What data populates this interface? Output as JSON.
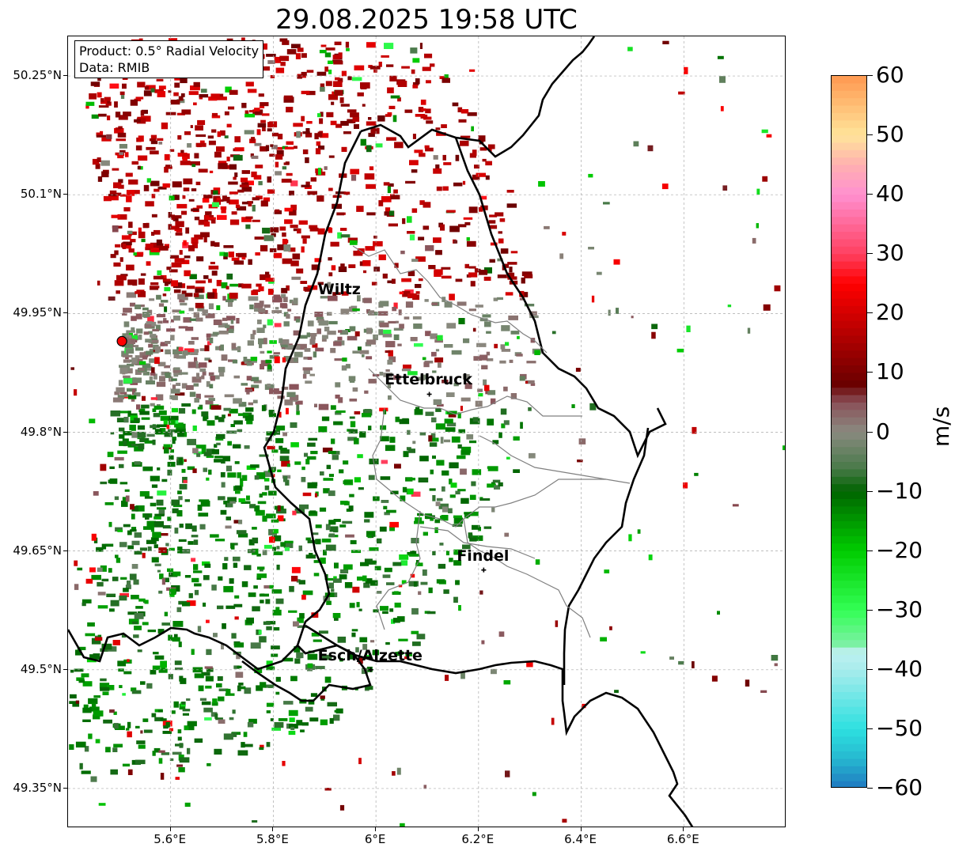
{
  "title": "29.08.2025 19:58 UTC",
  "info_box": {
    "product": "Product: 0.5° Radial Velocity",
    "source": "Data: RMIB"
  },
  "map": {
    "lon_range": [
      5.4,
      6.8
    ],
    "lat_range": [
      49.3,
      50.3
    ],
    "lat_ticks": [
      {
        "value": 50.25,
        "label": "50.25°N"
      },
      {
        "value": 50.1,
        "label": "50.1°N"
      },
      {
        "value": 49.95,
        "label": "49.95°N"
      },
      {
        "value": 49.8,
        "label": "49.8°N"
      },
      {
        "value": 49.65,
        "label": "49.65°N"
      },
      {
        "value": 49.5,
        "label": "49.5°N"
      },
      {
        "value": 49.35,
        "label": "49.35°N"
      }
    ],
    "lon_ticks": [
      {
        "value": 5.6,
        "label": "5.6°E"
      },
      {
        "value": 5.8,
        "label": "5.8°E"
      },
      {
        "value": 6.0,
        "label": "6°E"
      },
      {
        "value": 6.2,
        "label": "6.2°E"
      },
      {
        "value": 6.4,
        "label": "6.4°E"
      },
      {
        "value": 6.6,
        "label": "6.6°E"
      }
    ],
    "grid": true,
    "radar_site": {
      "lon": 5.505,
      "lat": 49.915,
      "color": "#ff0000"
    },
    "cities": [
      {
        "name": "Wiltz",
        "lon": 5.93,
        "lat": 49.97,
        "marker": false
      },
      {
        "name": "Ettelbruck",
        "lon": 6.104,
        "lat": 49.848,
        "marker": true
      },
      {
        "name": "Findel",
        "lon": 6.21,
        "lat": 49.626,
        "marker": true
      },
      {
        "name": "Esch/Alzette",
        "lon": 5.99,
        "lat": 49.5,
        "marker": true
      }
    ]
  },
  "colorbar": {
    "label": "m/s",
    "range": [
      -60,
      60
    ],
    "ticks": [
      {
        "value": 60,
        "label": "60"
      },
      {
        "value": 50,
        "label": "50"
      },
      {
        "value": 40,
        "label": "40"
      },
      {
        "value": 30,
        "label": "30"
      },
      {
        "value": 20,
        "label": "20"
      },
      {
        "value": 10,
        "label": "10"
      },
      {
        "value": 0,
        "label": "0"
      },
      {
        "value": -10,
        "label": "−10"
      },
      {
        "value": -20,
        "label": "−20"
      },
      {
        "value": -30,
        "label": "−30"
      },
      {
        "value": -40,
        "label": "−40"
      },
      {
        "value": -50,
        "label": "−50"
      },
      {
        "value": -60,
        "label": "−60"
      }
    ],
    "color_stops": [
      {
        "value": -60,
        "color": "#1f78c0"
      },
      {
        "value": -55,
        "color": "#26b8d0"
      },
      {
        "value": -50,
        "color": "#2de0e0"
      },
      {
        "value": -40,
        "color": "#a8ecec"
      },
      {
        "value": -37,
        "color": "#bff0f0"
      },
      {
        "value": -36,
        "color": "#80f0a8"
      },
      {
        "value": -30,
        "color": "#33ff55"
      },
      {
        "value": -20,
        "color": "#00cc00"
      },
      {
        "value": -10,
        "color": "#006400"
      },
      {
        "value": -6,
        "color": "#4a7a4a"
      },
      {
        "value": 0,
        "color": "#8a8a80"
      },
      {
        "value": 5,
        "color": "#8a5058"
      },
      {
        "value": 8,
        "color": "#6a0000"
      },
      {
        "value": 25,
        "color": "#ff0000"
      },
      {
        "value": 30,
        "color": "#ff4060"
      },
      {
        "value": 40,
        "color": "#ff90d0"
      },
      {
        "value": 45,
        "color": "#ffb0b0"
      },
      {
        "value": 50,
        "color": "#ffe49a"
      },
      {
        "value": 60,
        "color": "#ff9850"
      }
    ]
  }
}
